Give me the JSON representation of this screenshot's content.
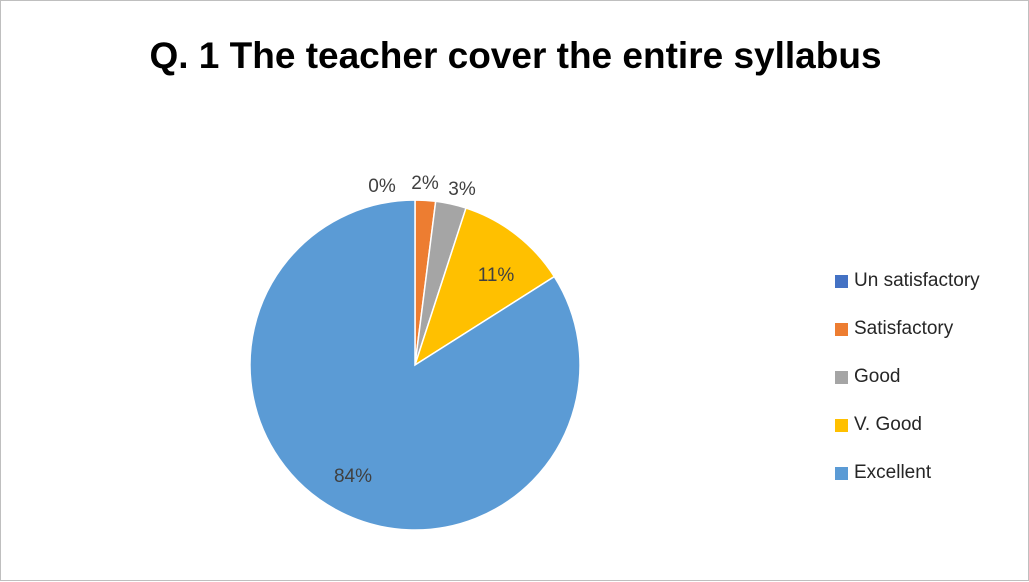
{
  "chart_data": {
    "type": "pie",
    "title": "Q. 1 The teacher cover the entire syllabus",
    "legend_position": "right",
    "categories": [
      "Un satisfactory",
      "Satisfactory",
      "Good",
      "V. Good",
      "Excellent"
    ],
    "values": [
      0,
      2,
      3,
      11,
      84
    ],
    "labels": [
      "0%",
      "2%",
      "3%",
      "11%",
      "84%"
    ],
    "colors": [
      "#4472C4",
      "#ED7D31",
      "#A5A5A5",
      "#FFC000",
      "#5B9BD5"
    ]
  }
}
